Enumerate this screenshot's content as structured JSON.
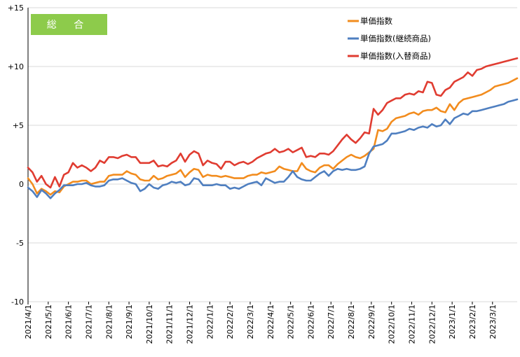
{
  "chart_data": {
    "type": "line",
    "title": "",
    "badge": "総 合",
    "xlabel": "",
    "ylabel": "",
    "ylim": [
      -10,
      15
    ],
    "yticks": [
      {
        "value": 15,
        "label": "+15"
      },
      {
        "value": 10,
        "label": "+10"
      },
      {
        "value": 5,
        "label": "+5"
      },
      {
        "value": 0,
        "label": "0"
      },
      {
        "value": -5,
        "label": "-5"
      },
      {
        "value": -10,
        "label": "-10"
      }
    ],
    "xticks": [
      {
        "index": 0,
        "label": "2021/4/1"
      },
      {
        "index": 4.5,
        "label": "2021/5/1"
      },
      {
        "index": 9,
        "label": "2021/6/1"
      },
      {
        "index": 13.5,
        "label": "2021/7/1"
      },
      {
        "index": 18,
        "label": "2021/8/1"
      },
      {
        "index": 22.5,
        "label": "2021/9/1"
      },
      {
        "index": 27,
        "label": "2021/10/1"
      },
      {
        "index": 31.5,
        "label": "2021/11/1"
      },
      {
        "index": 36,
        "label": "2021/12/1"
      },
      {
        "index": 40.5,
        "label": "2022/1/1"
      },
      {
        "index": 45,
        "label": "2022/2/1"
      },
      {
        "index": 49.5,
        "label": "2022/3/1"
      },
      {
        "index": 54,
        "label": "2022/4/1"
      },
      {
        "index": 58.5,
        "label": "2022/5/1"
      },
      {
        "index": 63,
        "label": "2022/6/1"
      },
      {
        "index": 67.5,
        "label": "2022/7/1"
      },
      {
        "index": 72,
        "label": "2022/8/1"
      },
      {
        "index": 76.5,
        "label": "2022/9/1"
      },
      {
        "index": 81,
        "label": "2022/10/1"
      },
      {
        "index": 85.5,
        "label": "2022/11/1"
      },
      {
        "index": 90,
        "label": "2022/12/1"
      },
      {
        "index": 94.5,
        "label": "2023/1/1"
      },
      {
        "index": 99,
        "label": "2023/2/1"
      },
      {
        "index": 103.5,
        "label": "2023/3/1"
      }
    ],
    "x_count": 110,
    "grid": "horizontal",
    "legend_position": "top-right",
    "series": [
      {
        "name": "単価指数",
        "color": "#F28C1E",
        "values": [
          0.5,
          0.0,
          -0.8,
          -0.4,
          -0.6,
          -0.9,
          -0.6,
          -0.7,
          -0.2,
          0.0,
          0.2,
          0.2,
          0.3,
          0.3,
          0.0,
          0.1,
          0.2,
          0.2,
          0.7,
          0.8,
          0.8,
          0.8,
          1.1,
          0.9,
          0.8,
          0.4,
          0.3,
          0.3,
          0.7,
          0.4,
          0.5,
          0.7,
          0.8,
          0.9,
          1.2,
          0.6,
          1.0,
          1.3,
          1.2,
          0.6,
          0.8,
          0.7,
          0.7,
          0.6,
          0.7,
          0.6,
          0.5,
          0.5,
          0.5,
          0.7,
          0.8,
          0.8,
          1.0,
          0.9,
          1.0,
          1.1,
          1.5,
          1.3,
          1.2,
          1.1,
          1.1,
          1.8,
          1.3,
          1.1,
          1.0,
          1.4,
          1.6,
          1.6,
          1.3,
          1.7,
          2.0,
          2.3,
          2.5,
          2.3,
          2.2,
          2.4,
          2.7,
          3.0,
          4.6,
          4.5,
          4.7,
          5.3,
          5.6,
          5.7,
          5.8,
          6.0,
          6.1,
          5.9,
          6.2,
          6.3,
          6.3,
          6.5,
          6.2,
          6.1,
          6.8,
          6.3,
          6.9,
          7.2,
          7.3,
          7.4,
          7.5,
          7.6,
          7.8,
          8.0,
          8.3,
          8.4,
          8.5,
          8.6,
          8.8,
          9.0
        ]
      },
      {
        "name": "単価指数(継続商品)",
        "color": "#4F7FC0",
        "values": [
          -0.3,
          -0.6,
          -1.1,
          -0.5,
          -0.8,
          -1.2,
          -0.8,
          -0.5,
          -0.1,
          -0.1,
          -0.1,
          0.0,
          0.0,
          0.1,
          -0.1,
          -0.2,
          -0.2,
          -0.1,
          0.3,
          0.4,
          0.4,
          0.5,
          0.3,
          0.1,
          0.0,
          -0.6,
          -0.4,
          0.0,
          -0.3,
          -0.4,
          -0.1,
          0.0,
          0.2,
          0.1,
          0.2,
          -0.1,
          0.0,
          0.5,
          0.4,
          -0.1,
          -0.1,
          -0.1,
          0.0,
          -0.1,
          -0.1,
          -0.4,
          -0.3,
          -0.4,
          -0.2,
          0.0,
          0.1,
          0.2,
          -0.1,
          0.5,
          0.3,
          0.1,
          0.2,
          0.2,
          0.6,
          1.1,
          0.6,
          0.4,
          0.3,
          0.3,
          0.6,
          0.9,
          1.1,
          0.7,
          1.1,
          1.3,
          1.2,
          1.3,
          1.2,
          1.2,
          1.3,
          1.5,
          2.6,
          3.2,
          3.3,
          3.4,
          3.7,
          4.3,
          4.3,
          4.4,
          4.5,
          4.7,
          4.6,
          4.8,
          4.9,
          4.8,
          5.1,
          4.9,
          5.0,
          5.5,
          5.1,
          5.6,
          5.8,
          6.0,
          5.9,
          6.2,
          6.2,
          6.3,
          6.4,
          6.5,
          6.6,
          6.7,
          6.8,
          7.0,
          7.1,
          7.2
        ]
      },
      {
        "name": "単価指数(入替商品)",
        "color": "#E03C31",
        "values": [
          1.4,
          1.0,
          0.2,
          0.7,
          0.0,
          -0.3,
          0.6,
          -0.2,
          0.8,
          1.0,
          1.8,
          1.4,
          1.6,
          1.4,
          1.1,
          1.4,
          2.0,
          1.8,
          2.3,
          2.3,
          2.2,
          2.4,
          2.5,
          2.3,
          2.3,
          1.8,
          1.8,
          1.8,
          2.0,
          1.5,
          1.6,
          1.5,
          1.8,
          2.0,
          2.6,
          1.9,
          2.5,
          2.8,
          2.6,
          1.6,
          2.0,
          1.8,
          1.7,
          1.3,
          1.9,
          1.9,
          1.6,
          1.8,
          1.9,
          1.7,
          1.9,
          2.2,
          2.4,
          2.6,
          2.7,
          3.0,
          2.7,
          2.8,
          3.0,
          2.7,
          2.9,
          3.1,
          2.3,
          2.4,
          2.3,
          2.6,
          2.6,
          2.5,
          2.8,
          3.3,
          3.8,
          4.2,
          3.8,
          3.5,
          3.9,
          4.4,
          4.3,
          6.4,
          5.9,
          6.3,
          6.9,
          7.1,
          7.3,
          7.3,
          7.6,
          7.7,
          7.6,
          7.9,
          7.8,
          8.7,
          8.6,
          7.6,
          7.5,
          8.0,
          8.2,
          8.7,
          8.9,
          9.1,
          9.5,
          9.2,
          9.7,
          9.8,
          10.0,
          10.1,
          10.2,
          10.3,
          10.4,
          10.5,
          10.6,
          10.7
        ]
      }
    ]
  }
}
